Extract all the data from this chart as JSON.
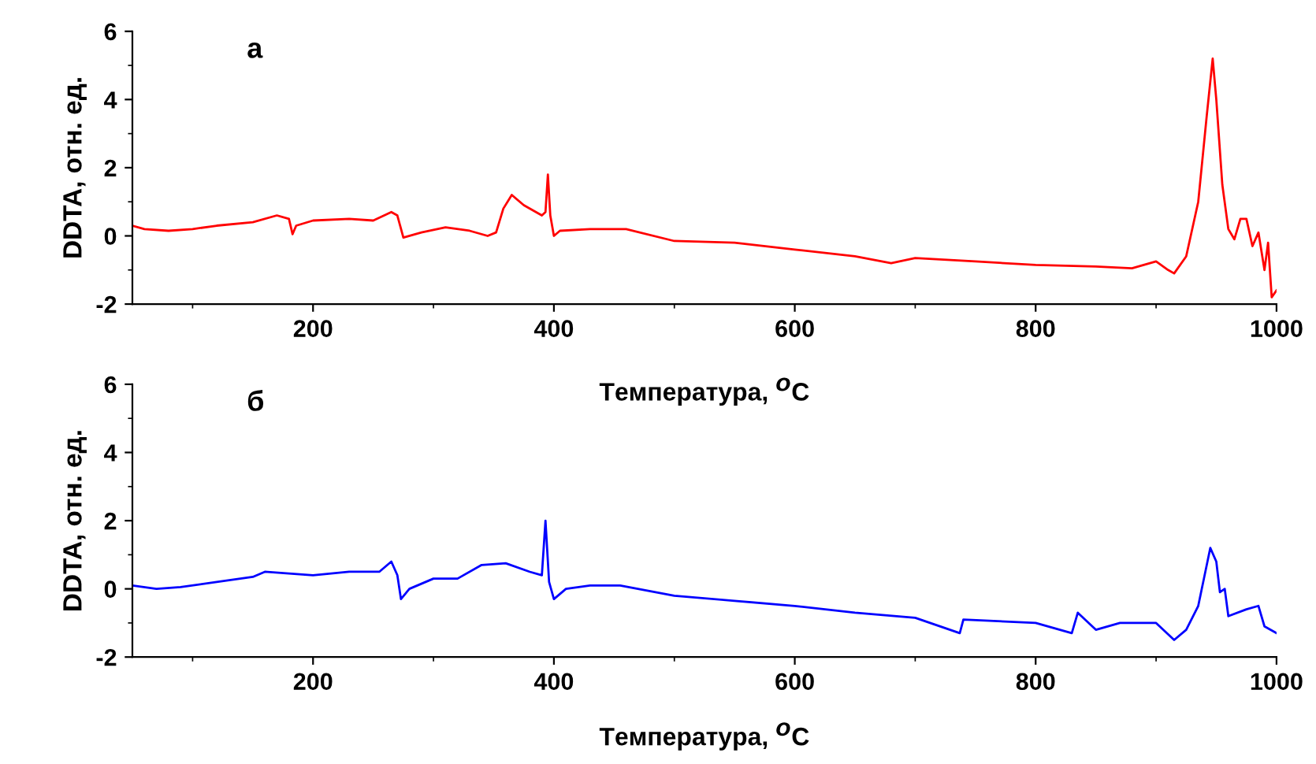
{
  "chart_data": [
    {
      "type": "line",
      "xlabel": "Температура, $^{O}$C",
      "ylabel": "DDTA, отн. ед.",
      "annotations": [
        "а"
      ],
      "xlim": [
        50,
        1000
      ],
      "xticks": [
        200,
        400,
        600,
        800,
        1000
      ],
      "ylim": [
        -2,
        6
      ],
      "yticks": [
        -2,
        0,
        2,
        4,
        6
      ],
      "grid": false,
      "series": [
        {
          "color": "#ff0000",
          "x": [
            50,
            60,
            80,
            100,
            120,
            150,
            170,
            180,
            183,
            186,
            200,
            230,
            250,
            265,
            270,
            275,
            290,
            310,
            330,
            345,
            352,
            358,
            365,
            375,
            390,
            393,
            395,
            397,
            400,
            405,
            430,
            460,
            500,
            550,
            600,
            650,
            680,
            700,
            750,
            800,
            850,
            880,
            900,
            910,
            915,
            925,
            935,
            942,
            947,
            950,
            955,
            960,
            965,
            970,
            975,
            980,
            985,
            990,
            993,
            996,
            1000
          ],
          "values": [
            0.3,
            0.2,
            0.15,
            0.2,
            0.3,
            0.4,
            0.6,
            0.5,
            0.05,
            0.3,
            0.45,
            0.5,
            0.45,
            0.7,
            0.6,
            -0.05,
            0.1,
            0.25,
            0.15,
            0.0,
            0.1,
            0.8,
            1.2,
            0.9,
            0.6,
            0.7,
            1.8,
            0.6,
            0.0,
            0.15,
            0.2,
            0.2,
            -0.15,
            -0.2,
            -0.4,
            -0.6,
            -0.8,
            -0.65,
            -0.75,
            -0.85,
            -0.9,
            -0.95,
            -0.75,
            -1.0,
            -1.1,
            -0.6,
            1.0,
            3.5,
            5.2,
            4.0,
            1.5,
            0.2,
            -0.1,
            0.5,
            0.5,
            -0.3,
            0.1,
            -1.0,
            -0.2,
            -1.8,
            -1.6
          ]
        }
      ]
    },
    {
      "type": "line",
      "xlabel": "Температура, $^{O}$C",
      "ylabel": "DDTA, отн. ед.",
      "annotations": [
        "б"
      ],
      "xlim": [
        50,
        1000
      ],
      "xticks": [
        200,
        400,
        600,
        800,
        1000
      ],
      "ylim": [
        -2,
        6
      ],
      "yticks": [
        -2,
        0,
        2,
        4,
        6
      ],
      "grid": false,
      "series": [
        {
          "color": "#0000ff",
          "x": [
            50,
            70,
            90,
            120,
            150,
            160,
            200,
            230,
            255,
            265,
            270,
            273,
            280,
            300,
            320,
            340,
            360,
            380,
            390,
            393,
            396,
            400,
            410,
            430,
            455,
            500,
            550,
            600,
            650,
            700,
            737,
            740,
            800,
            830,
            835,
            850,
            870,
            900,
            915,
            925,
            935,
            945,
            950,
            953,
            957,
            960,
            975,
            985,
            990,
            1000
          ],
          "values": [
            0.1,
            0.0,
            0.05,
            0.2,
            0.35,
            0.5,
            0.4,
            0.5,
            0.5,
            0.8,
            0.4,
            -0.3,
            0.0,
            0.3,
            0.3,
            0.7,
            0.75,
            0.5,
            0.4,
            2.0,
            0.2,
            -0.3,
            0.0,
            0.1,
            0.1,
            -0.2,
            -0.35,
            -0.5,
            -0.7,
            -0.85,
            -1.3,
            -0.9,
            -1.0,
            -1.3,
            -0.7,
            -1.2,
            -1.0,
            -1.0,
            -1.5,
            -1.2,
            -0.5,
            1.2,
            0.8,
            -0.1,
            0.0,
            -0.8,
            -0.6,
            -0.5,
            -1.1,
            -1.3
          ]
        }
      ]
    }
  ]
}
